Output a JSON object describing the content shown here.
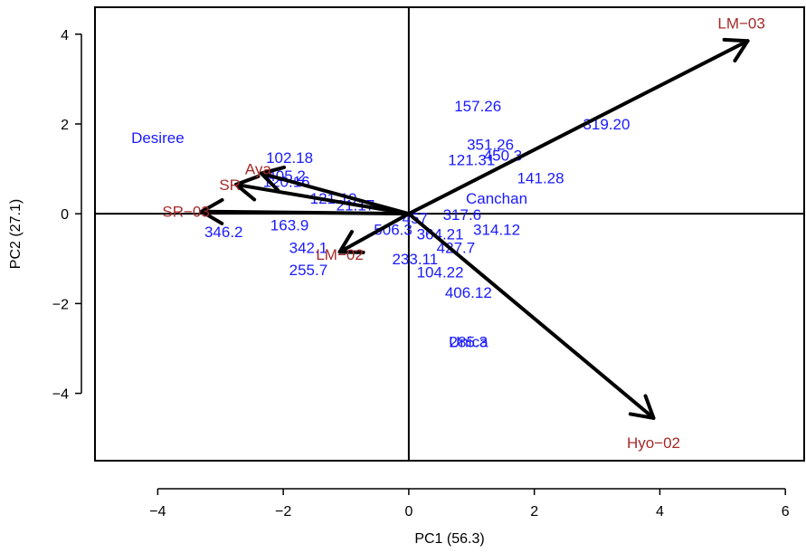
{
  "chart_data": {
    "type": "scatter",
    "subtype": "biplot",
    "xlabel": "PC1 (56.3)",
    "ylabel": "PC2 (27.1)",
    "xlim": [
      -5.0,
      6.3
    ],
    "ylim": [
      -5.5,
      4.6
    ],
    "xticks": [
      -4,
      -2,
      0,
      2,
      4,
      6
    ],
    "yticks": [
      -4,
      -2,
      0,
      2,
      4
    ],
    "xtick_labels": [
      "−4",
      "−2",
      "0",
      "2",
      "4",
      "6"
    ],
    "ytick_labels": [
      "−4",
      "−2",
      "0",
      "2",
      "4"
    ],
    "reference_lines": {
      "x": 0,
      "y": 0
    },
    "colors": {
      "genotypes": "#1a1aff",
      "environments": "#a52a2a",
      "vectors": "#000000"
    },
    "genotypes": [
      {
        "label": "Desiree",
        "x": -4.0,
        "y": 1.7
      },
      {
        "label": "157.26",
        "x": 1.1,
        "y": 2.4
      },
      {
        "label": "319.20",
        "x": 3.15,
        "y": 2.0
      },
      {
        "label": "351.26",
        "x": 1.3,
        "y": 1.55
      },
      {
        "label": "121.31",
        "x": 1.0,
        "y": 1.2
      },
      {
        "label": "450.3",
        "x": 1.5,
        "y": 1.3
      },
      {
        "label": "141.28",
        "x": 2.1,
        "y": 0.8
      },
      {
        "label": "Canchan",
        "x": 1.4,
        "y": 0.35
      },
      {
        "label": "317.6",
        "x": 0.85,
        "y": -0.02
      },
      {
        "label": "314.12",
        "x": 1.4,
        "y": -0.35
      },
      {
        "label": "102.18",
        "x": -1.9,
        "y": 1.25
      },
      {
        "label": "120.16",
        "x": -1.95,
        "y": 0.72
      },
      {
        "label": "405.2",
        "x": -1.95,
        "y": 0.85
      },
      {
        "label": "121.19",
        "x": -1.2,
        "y": 0.35
      },
      {
        "label": "21.17",
        "x": -0.85,
        "y": 0.2
      },
      {
        "label": "346.2",
        "x": -2.95,
        "y": -0.4
      },
      {
        "label": "163.9",
        "x": -1.9,
        "y": -0.25
      },
      {
        "label": "506.3",
        "x": -0.25,
        "y": -0.35
      },
      {
        "label": "457",
        "x": 0.1,
        "y": -0.1
      },
      {
        "label": "342.1",
        "x": -1.6,
        "y": -0.75
      },
      {
        "label": "255.7",
        "x": -1.6,
        "y": -1.25
      },
      {
        "label": "364.21",
        "x": 0.5,
        "y": -0.45
      },
      {
        "label": "427.7",
        "x": 0.75,
        "y": -0.75
      },
      {
        "label": "233.11",
        "x": 0.1,
        "y": -1.0
      },
      {
        "label": "104.22",
        "x": 0.5,
        "y": -1.3
      },
      {
        "label": "406.12",
        "x": 0.95,
        "y": -1.75
      },
      {
        "label": "285.3",
        "x": 0.95,
        "y": -2.85
      },
      {
        "label": "Unica",
        "x": 0.95,
        "y": -2.85
      }
    ],
    "environments": [
      {
        "label": "LM−03",
        "x": 5.4,
        "y": 3.85,
        "label_x": 5.3,
        "label_y": 4.25
      },
      {
        "label": "Hyo−02",
        "x": 3.9,
        "y": -4.55,
        "label_x": 3.9,
        "label_y": -5.1
      },
      {
        "label": "LM−02",
        "x": -1.1,
        "y": -0.85,
        "label_x": -1.1,
        "label_y": -0.9
      },
      {
        "label": "Aya",
        "x": -2.35,
        "y": 0.9,
        "label_x": -2.4,
        "label_y": 1.0
      },
      {
        "label": "SR",
        "x": -2.75,
        "y": 0.65,
        "label_x": -2.85,
        "label_y": 0.65
      },
      {
        "label": "SR−03",
        "x": -3.3,
        "y": 0.05,
        "label_x": -3.55,
        "label_y": 0.05
      }
    ]
  }
}
